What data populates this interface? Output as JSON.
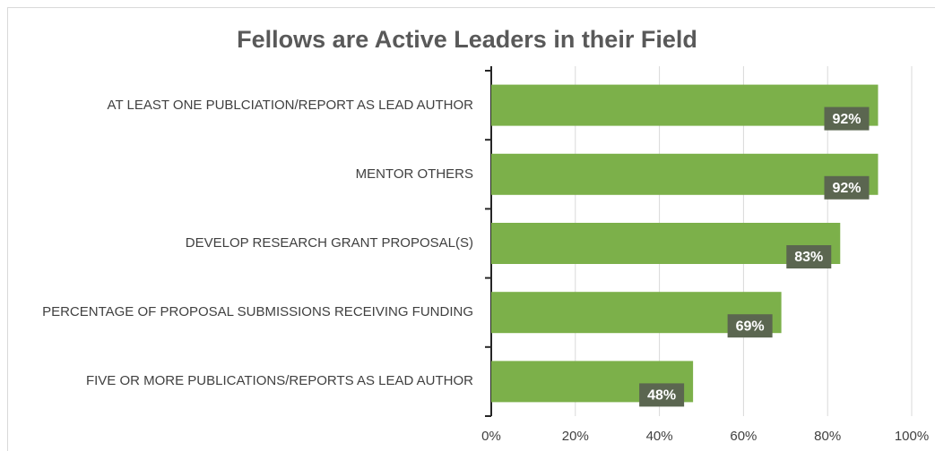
{
  "chart_data": {
    "type": "bar",
    "orientation": "horizontal",
    "title": "Fellows are Active Leaders in their Field",
    "categories": [
      "AT LEAST ONE PUBLCIATION/REPORT AS LEAD AUTHOR",
      "MENTOR OTHERS",
      "DEVELOP RESEARCH GRANT PROPOSAL(S)",
      "PERCENTAGE OF PROPOSAL SUBMISSIONS RECEIVING FUNDING",
      "FIVE OR MORE PUBLICATIONS/REPORTS AS LEAD AUTHOR"
    ],
    "values": [
      92,
      92,
      83,
      69,
      48
    ],
    "value_labels": [
      "92%",
      "92%",
      "83%",
      "69%",
      "48%"
    ],
    "color": "#7cb04a",
    "xlim": [
      0,
      100
    ],
    "xticks": [
      {
        "value": 0,
        "label": "0%"
      },
      {
        "value": 20,
        "label": "20%"
      },
      {
        "value": 40,
        "label": "40%"
      },
      {
        "value": 60,
        "label": "60%"
      },
      {
        "value": 80,
        "label": "80%"
      },
      {
        "value": 100,
        "label": "100%"
      }
    ],
    "grid": true
  }
}
